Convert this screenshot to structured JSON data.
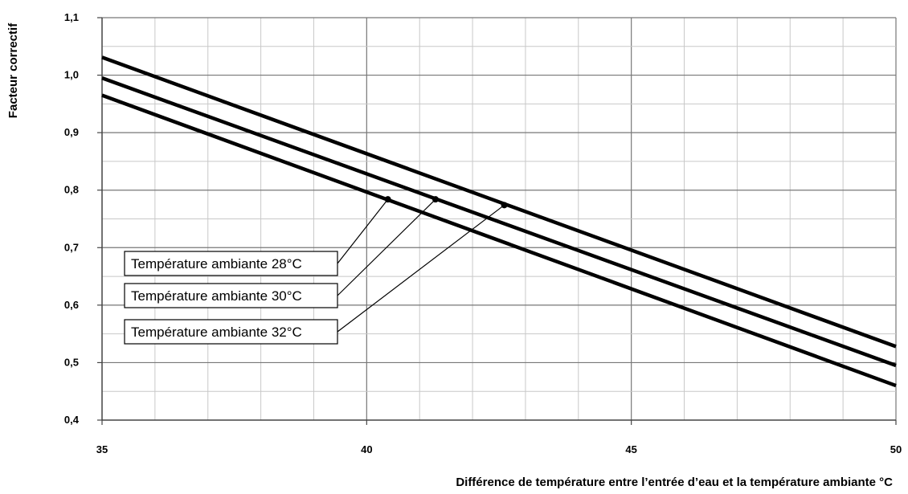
{
  "chart_data": {
    "type": "line",
    "title": "",
    "xlabel": "Différence de température entre l’entrée d’eau et la température ambiante °C",
    "ylabel": "Facteur correctif",
    "xlim": [
      35,
      50
    ],
    "ylim": [
      0.4,
      1.1
    ],
    "x_major_ticks": [
      35,
      40,
      45,
      50
    ],
    "x_tick_labels": [
      "35",
      "40",
      "45",
      "50"
    ],
    "x_minor_step": 1,
    "y_major_ticks": [
      0.4,
      0.5,
      0.6,
      0.7,
      0.8,
      0.9,
      1.0,
      1.1
    ],
    "y_tick_labels": [
      "0,4",
      "0,5",
      "0,6",
      "0,7",
      "0,8",
      "0,9",
      "1,0",
      "1,1"
    ],
    "y_minor_step": 0.05,
    "grid": true,
    "line_color": "#000000",
    "grid_color": "#888888",
    "series": [
      {
        "name": "Température ambiante 28°C",
        "x": [
          35,
          50
        ],
        "y": [
          0.965,
          0.46
        ],
        "marker": {
          "x": 40.4,
          "y": 0.784
        }
      },
      {
        "name": "Température ambiante 30°C",
        "x": [
          35,
          50
        ],
        "y": [
          0.995,
          0.495
        ],
        "marker": {
          "x": 41.3,
          "y": 0.784
        }
      },
      {
        "name": "Température ambiante 32°C",
        "x": [
          35,
          50
        ],
        "y": [
          1.031,
          0.528
        ],
        "marker": {
          "x": 42.6,
          "y": 0.774
        }
      }
    ]
  }
}
